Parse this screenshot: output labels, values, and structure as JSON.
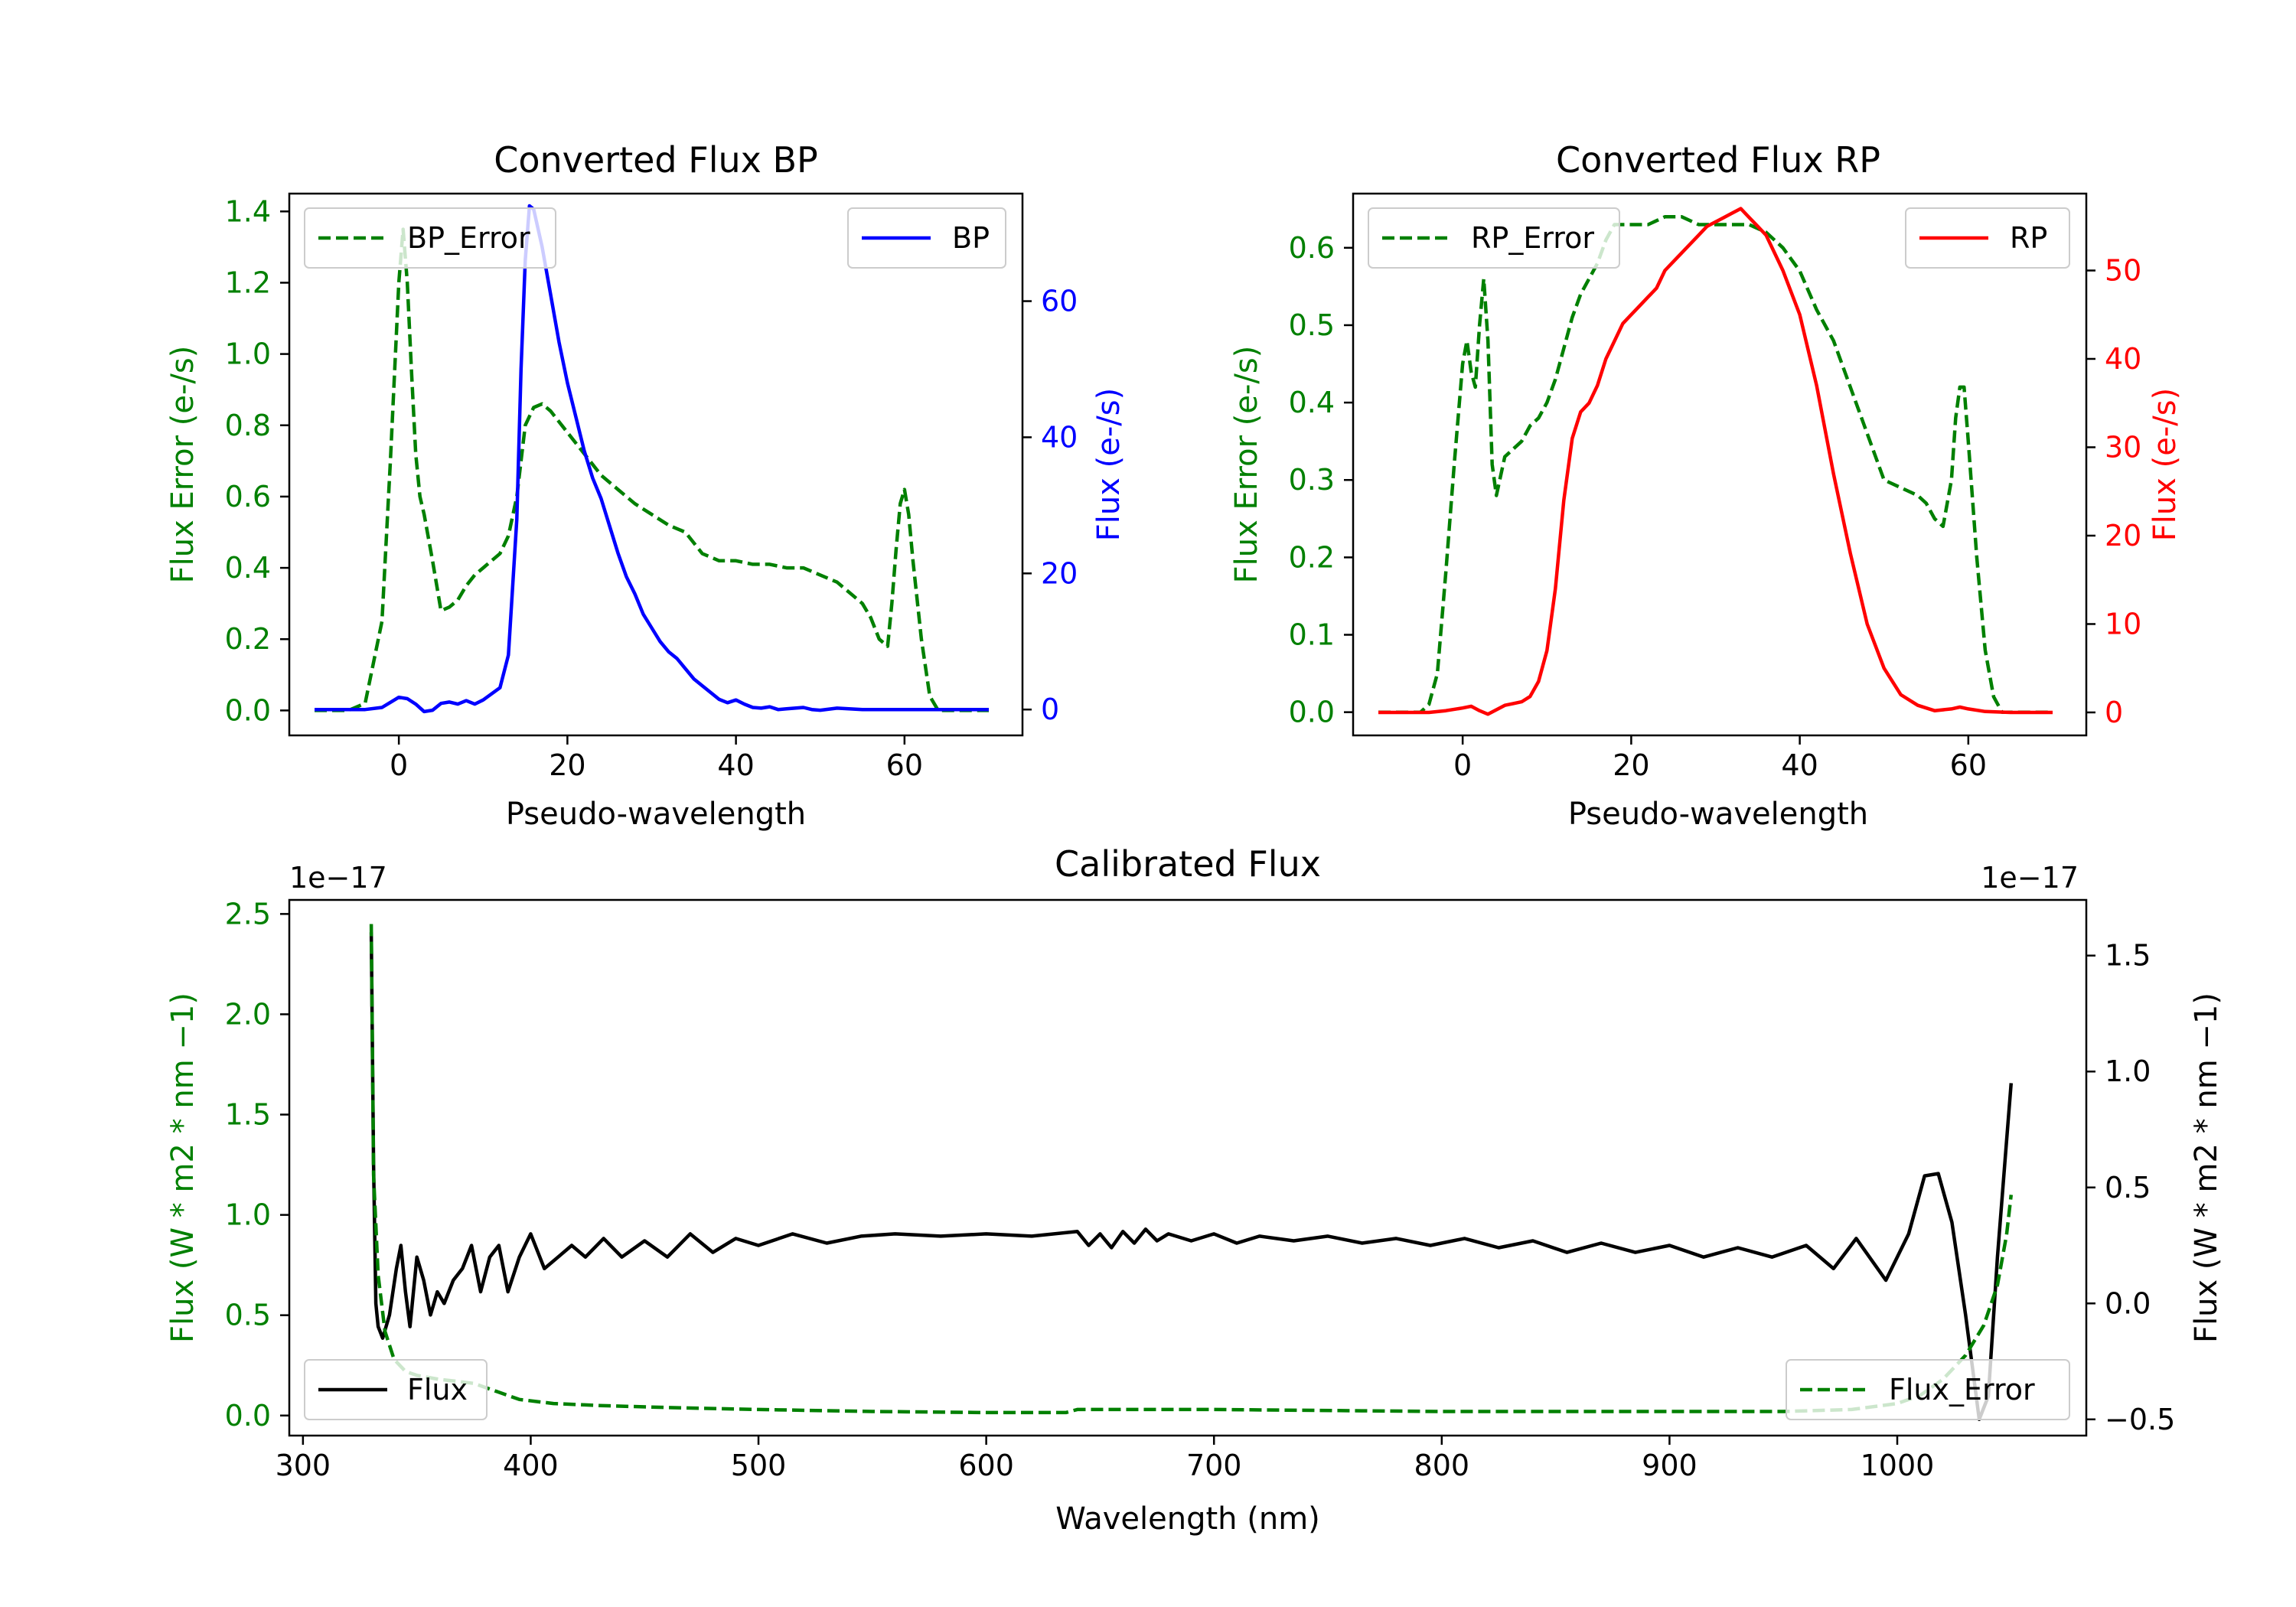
{
  "colors": {
    "green": "#008000",
    "blue": "#0000ff",
    "red": "#ff0000",
    "black": "#000000"
  },
  "chart_data": [
    {
      "id": "bp",
      "type": "line",
      "title": "Converted Flux BP",
      "xlabel": "Pseudo-wavelength",
      "xlim": [
        -13,
        74
      ],
      "xticks": [
        0,
        20,
        40,
        60
      ],
      "left_axis": {
        "label": "Flux Error (e-/s)",
        "color": "#008000",
        "ylim": [
          -0.07,
          1.45
        ],
        "ticks": [
          0.0,
          0.2,
          0.4,
          0.6,
          0.8,
          1.0,
          1.2,
          1.4
        ],
        "tick_labels": [
          "0.0",
          "0.2",
          "0.4",
          "0.6",
          "0.8",
          "1.0",
          "1.2",
          "1.4"
        ]
      },
      "right_axis": {
        "label": "Flux (e-/s)",
        "color": "#0000ff",
        "ylim": [
          -3.8,
          75.8
        ],
        "ticks": [
          0,
          20,
          40,
          60
        ],
        "tick_labels": [
          "0",
          "20",
          "40",
          "60"
        ]
      },
      "series": [
        {
          "name": "BP_Error",
          "axis": "left",
          "style": "dashed",
          "color": "#008000",
          "x": [
            -10,
            -6,
            -4,
            -2,
            -1,
            0,
            0.5,
            1,
            1.5,
            2,
            2.5,
            3,
            4,
            5,
            6,
            7,
            8,
            9,
            10,
            11,
            12,
            13,
            14,
            15,
            16,
            17,
            18,
            20,
            22,
            24,
            26,
            28,
            30,
            32,
            34,
            36,
            38,
            40,
            42,
            44,
            46,
            48,
            50,
            52,
            54,
            55,
            56,
            57,
            58,
            58.5,
            59,
            59.5,
            60,
            60.5,
            61,
            62,
            63,
            64,
            66,
            70
          ],
          "values": [
            0.0,
            0.0,
            0.02,
            0.25,
            0.7,
            1.2,
            1.35,
            1.2,
            0.95,
            0.72,
            0.6,
            0.55,
            0.42,
            0.28,
            0.29,
            0.31,
            0.35,
            0.38,
            0.4,
            0.42,
            0.44,
            0.49,
            0.6,
            0.8,
            0.85,
            0.86,
            0.84,
            0.78,
            0.72,
            0.66,
            0.62,
            0.58,
            0.55,
            0.52,
            0.5,
            0.44,
            0.42,
            0.42,
            0.41,
            0.41,
            0.4,
            0.4,
            0.38,
            0.36,
            0.32,
            0.3,
            0.26,
            0.2,
            0.18,
            0.3,
            0.45,
            0.58,
            0.62,
            0.55,
            0.42,
            0.2,
            0.04,
            0.0,
            0.0,
            0.0
          ]
        },
        {
          "name": "BP",
          "axis": "right",
          "style": "solid",
          "color": "#0000ff",
          "x": [
            -10,
            -4,
            -2,
            0,
            1,
            2,
            3,
            4,
            5,
            6,
            7,
            8,
            9,
            10,
            11,
            12,
            13,
            14,
            14.5,
            15,
            15.5,
            16,
            17,
            18,
            19,
            20,
            21,
            22,
            23,
            24,
            25,
            26,
            27,
            28,
            29,
            30,
            31,
            32,
            33,
            34,
            35,
            36,
            37,
            38,
            39,
            40,
            41,
            42,
            43,
            44,
            45,
            46,
            47,
            48,
            49,
            50,
            52,
            55,
            60,
            65,
            70
          ],
          "values": [
            0,
            0,
            0.3,
            1.8,
            1.6,
            0.8,
            -0.3,
            -0.1,
            0.9,
            1.1,
            0.8,
            1.3,
            0.8,
            1.4,
            2.3,
            3.2,
            8.0,
            28.0,
            50.0,
            66.0,
            74.0,
            73.5,
            68.0,
            61.0,
            54.0,
            48.0,
            43.0,
            38.0,
            34.0,
            31.0,
            27.0,
            23.0,
            19.5,
            17.0,
            14.0,
            12.0,
            10.0,
            8.5,
            7.5,
            6.0,
            4.5,
            3.5,
            2.5,
            1.5,
            1.0,
            1.4,
            0.8,
            0.3,
            0.2,
            0.4,
            0.0,
            0.1,
            0.2,
            0.3,
            0.0,
            -0.1,
            0.2,
            0.0,
            0.0,
            0.0,
            0.0
          ]
        }
      ],
      "legends": [
        {
          "label": "BP_Error",
          "placement": "upper left"
        },
        {
          "label": "BP",
          "placement": "upper right"
        }
      ]
    },
    {
      "id": "rp",
      "type": "line",
      "title": "Converted Flux RP",
      "xlabel": "Pseudo-wavelength",
      "xlim": [
        -13,
        74
      ],
      "xticks": [
        0,
        20,
        40,
        60
      ],
      "left_axis": {
        "label": "Flux Error (e-/s)",
        "color": "#008000",
        "ylim": [
          -0.03,
          0.67
        ],
        "ticks": [
          0.0,
          0.1,
          0.2,
          0.3,
          0.4,
          0.5,
          0.6
        ],
        "tick_labels": [
          "0.0",
          "0.1",
          "0.2",
          "0.3",
          "0.4",
          "0.5",
          "0.6"
        ]
      },
      "right_axis": {
        "label": "Flux (e-/s)",
        "color": "#ff0000",
        "ylim": [
          -2.6,
          58.7
        ],
        "ticks": [
          0,
          10,
          20,
          30,
          40,
          50
        ],
        "tick_labels": [
          "0",
          "10",
          "20",
          "30",
          "40",
          "50"
        ]
      },
      "series": [
        {
          "name": "RP_Error",
          "axis": "right_hidden",
          "style": "dashed",
          "color": "#008000",
          "x": [
            -10,
            -5,
            -4,
            -3,
            -2,
            -1,
            0,
            0.5,
            1,
            1.5,
            2,
            2.5,
            3,
            3.5,
            4,
            5,
            6,
            7,
            8,
            9,
            10,
            11,
            12,
            13,
            14,
            15,
            16,
            17,
            18,
            20,
            22,
            24,
            26,
            28,
            30,
            32,
            34,
            36,
            38,
            40,
            42,
            44,
            46,
            48,
            50,
            52,
            54,
            55,
            56,
            57,
            58,
            58.5,
            59,
            59.5,
            60,
            61,
            62,
            63,
            64,
            66,
            70
          ],
          "values": [
            0.0,
            0.0,
            0.01,
            0.05,
            0.18,
            0.32,
            0.45,
            0.48,
            0.44,
            0.42,
            0.5,
            0.56,
            0.48,
            0.32,
            0.28,
            0.33,
            0.34,
            0.35,
            0.37,
            0.38,
            0.4,
            0.43,
            0.47,
            0.51,
            0.54,
            0.56,
            0.58,
            0.61,
            0.63,
            0.63,
            0.63,
            0.64,
            0.64,
            0.63,
            0.63,
            0.63,
            0.63,
            0.62,
            0.6,
            0.57,
            0.52,
            0.48,
            0.42,
            0.36,
            0.3,
            0.29,
            0.28,
            0.27,
            0.25,
            0.24,
            0.3,
            0.38,
            0.42,
            0.42,
            0.35,
            0.2,
            0.08,
            0.02,
            0.0,
            0.0,
            0.0
          ]
        },
        {
          "name": "RP",
          "axis": "right",
          "style": "solid",
          "color": "#ff0000",
          "x": [
            -10,
            -4,
            -2,
            0,
            1,
            2,
            3,
            4,
            5,
            6,
            7,
            8,
            9,
            10,
            11,
            12,
            13,
            14,
            15,
            16,
            17,
            18,
            19,
            20,
            21,
            22,
            23,
            24,
            25,
            26,
            27,
            28,
            29,
            30,
            31,
            32,
            33,
            34,
            35,
            36,
            37,
            38,
            40,
            42,
            44,
            46,
            48,
            50,
            52,
            54,
            56,
            58,
            59,
            60,
            62,
            65,
            70
          ],
          "values": [
            0,
            0,
            0.2,
            0.5,
            0.7,
            0.2,
            -0.2,
            0.3,
            0.8,
            1.0,
            1.2,
            1.8,
            3.5,
            7.0,
            14.0,
            24.0,
            31.0,
            34.0,
            35.0,
            37.0,
            40.0,
            42.0,
            44.0,
            45.0,
            46.0,
            47.0,
            48.0,
            50.0,
            51.0,
            52.0,
            53.0,
            54.0,
            55.0,
            55.5,
            56.0,
            56.5,
            57.0,
            56.0,
            55.0,
            54.0,
            52.0,
            50.0,
            45.0,
            37.0,
            27.0,
            18.0,
            10.0,
            5.0,
            2.0,
            0.8,
            0.2,
            0.4,
            0.6,
            0.4,
            0.1,
            0.0,
            0.0
          ]
        }
      ],
      "legends": [
        {
          "label": "RP_Error",
          "placement": "upper left"
        },
        {
          "label": "RP",
          "placement": "upper right"
        }
      ]
    },
    {
      "id": "cal",
      "type": "line",
      "title": "Calibrated Flux",
      "xlabel": "Wavelength (nm)",
      "xlim": [
        294,
        1083
      ],
      "xticks": [
        300,
        400,
        500,
        600,
        700,
        800,
        900,
        1000
      ],
      "left_axis": {
        "label": "Flux (W * m2 * nm −1)",
        "color": "#008000",
        "offset_text": "1e−17",
        "ylim": [
          -0.1,
          2.57
        ],
        "ticks": [
          0.0,
          0.5,
          1.0,
          1.5,
          2.0,
          2.5
        ],
        "tick_labels": [
          "0.0",
          "0.5",
          "1.0",
          "1.5",
          "2.0",
          "2.5"
        ]
      },
      "right_axis": {
        "label": "Flux (W * m2 * nm −1)",
        "color": "#000000",
        "offset_text": "1e−17",
        "ylim": [
          -0.57,
          1.74
        ],
        "ticks": [
          -0.5,
          0.0,
          0.5,
          1.0,
          1.5
        ],
        "tick_labels": [
          "−0.5",
          "0.0",
          "0.5",
          "1.0",
          "1.5"
        ]
      },
      "series": [
        {
          "name": "Flux",
          "axis": "right",
          "style": "solid",
          "color": "#000000",
          "x": [
            330,
            331,
            332,
            333,
            335,
            338,
            341,
            343,
            345,
            347,
            350,
            353,
            356,
            359,
            362,
            366,
            370,
            374,
            378,
            382,
            386,
            390,
            395,
            400,
            406,
            412,
            418,
            424,
            432,
            440,
            450,
            460,
            470,
            480,
            490,
            500,
            515,
            530,
            545,
            560,
            580,
            600,
            620,
            640,
            645,
            650,
            655,
            660,
            665,
            670,
            675,
            680,
            690,
            700,
            710,
            720,
            735,
            750,
            765,
            780,
            795,
            810,
            825,
            840,
            855,
            870,
            885,
            900,
            915,
            930,
            945,
            960,
            972,
            982,
            995,
            1005,
            1012,
            1018,
            1024,
            1030,
            1036,
            1040,
            1044,
            1048,
            1050
          ],
          "values": [
            1.6,
            0.6,
            0.0,
            -0.1,
            -0.15,
            -0.05,
            0.15,
            0.25,
            0.05,
            -0.1,
            0.2,
            0.1,
            -0.05,
            0.05,
            0.0,
            0.1,
            0.15,
            0.25,
            0.05,
            0.2,
            0.25,
            0.05,
            0.2,
            0.3,
            0.15,
            0.2,
            0.25,
            0.2,
            0.28,
            0.2,
            0.27,
            0.2,
            0.3,
            0.22,
            0.28,
            0.25,
            0.3,
            0.26,
            0.29,
            0.3,
            0.29,
            0.3,
            0.29,
            0.31,
            0.25,
            0.3,
            0.24,
            0.31,
            0.26,
            0.32,
            0.27,
            0.3,
            0.27,
            0.3,
            0.26,
            0.29,
            0.27,
            0.29,
            0.26,
            0.28,
            0.25,
            0.28,
            0.24,
            0.27,
            0.22,
            0.26,
            0.22,
            0.25,
            0.2,
            0.24,
            0.2,
            0.25,
            0.15,
            0.28,
            0.1,
            0.3,
            0.55,
            0.56,
            0.35,
            -0.05,
            -0.5,
            -0.4,
            0.2,
            0.7,
            0.95
          ]
        },
        {
          "name": "Flux_Error",
          "axis": "left",
          "style": "dashed",
          "color": "#008000",
          "x": [
            330,
            331,
            333,
            336,
            340,
            345,
            350,
            355,
            360,
            368,
            375,
            385,
            395,
            410,
            430,
            460,
            500,
            550,
            600,
            635,
            640,
            650,
            700,
            800,
            900,
            950,
            980,
            1000,
            1010,
            1020,
            1030,
            1038,
            1044,
            1048,
            1050
          ],
          "values": [
            2.45,
            1.2,
            0.7,
            0.42,
            0.28,
            0.22,
            0.2,
            0.19,
            0.18,
            0.17,
            0.16,
            0.12,
            0.08,
            0.06,
            0.05,
            0.04,
            0.03,
            0.02,
            0.015,
            0.015,
            0.03,
            0.03,
            0.03,
            0.02,
            0.02,
            0.02,
            0.03,
            0.06,
            0.1,
            0.18,
            0.3,
            0.45,
            0.65,
            0.9,
            1.1
          ]
        }
      ],
      "legends": [
        {
          "label": "Flux",
          "placement": "lower left"
        },
        {
          "label": "Flux_Error",
          "placement": "lower right"
        }
      ]
    }
  ]
}
